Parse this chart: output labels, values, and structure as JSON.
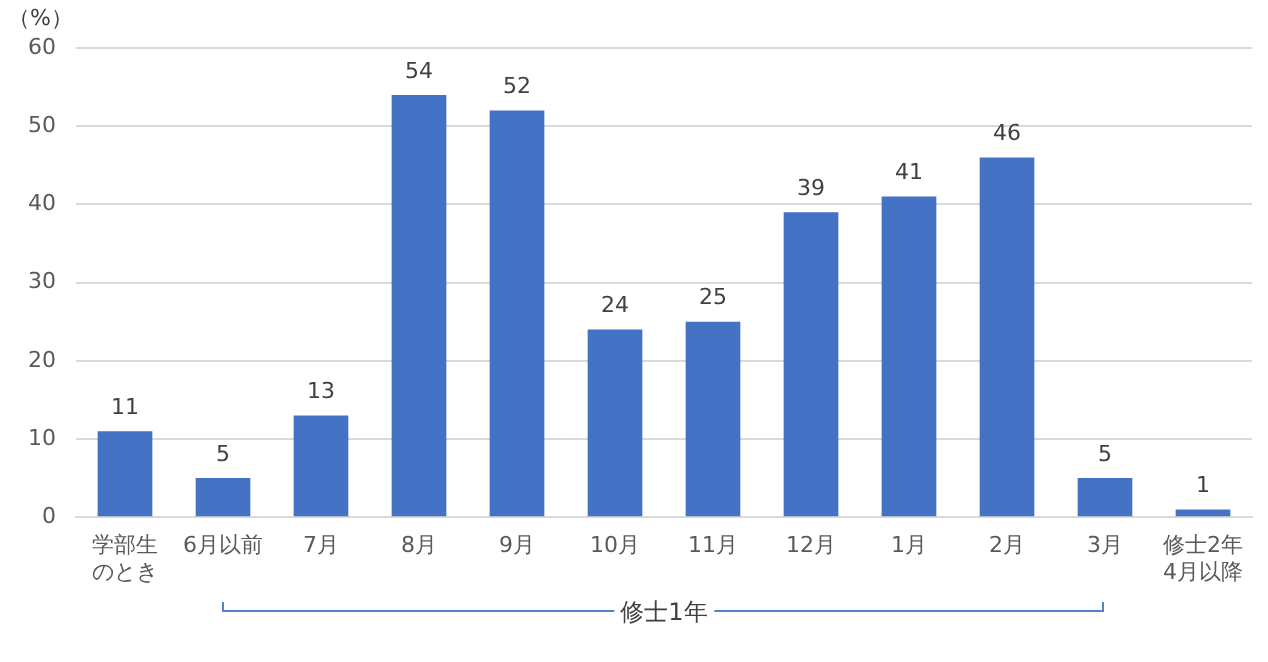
{
  "chart_data": {
    "type": "bar",
    "ylabel": "（%）",
    "categories": [
      "学部生のとき",
      "6月以前",
      "7月",
      "8月",
      "9月",
      "10月",
      "11月",
      "12月",
      "1月",
      "2月",
      "3月",
      "修士2年4月以降"
    ],
    "values": [
      11,
      5,
      13,
      54,
      52,
      24,
      25,
      39,
      41,
      46,
      5,
      1
    ],
    "color": "#4472c4",
    "ylim": [
      0,
      60
    ],
    "yticks": [
      0,
      10,
      20,
      30,
      40,
      50,
      60
    ],
    "grid": "y",
    "data_labels": true,
    "annotations": [
      "修士1年"
    ]
  }
}
